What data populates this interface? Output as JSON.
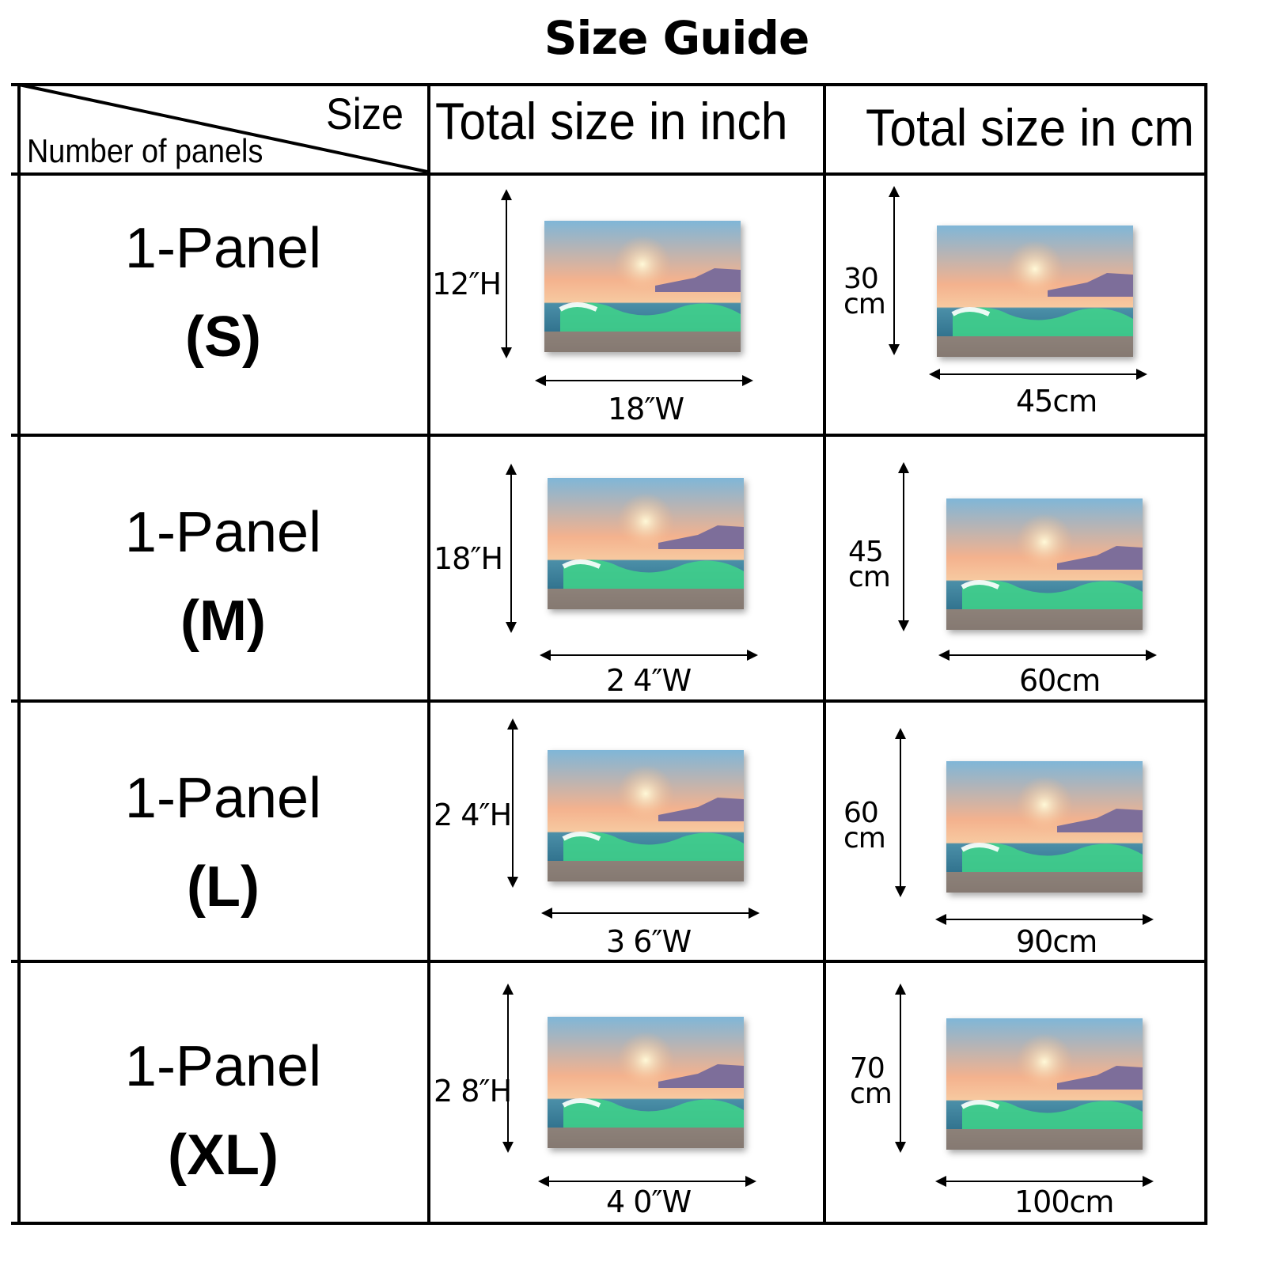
{
  "title": "Size Guide",
  "header": {
    "size_label": "Size",
    "panels_label": "Number of panels",
    "inch_column": "Total size in inch",
    "cm_column": "Total size in cm"
  },
  "rows": [
    {
      "panels": "1-Panel",
      "size": "(S)",
      "inch_h": "12″H",
      "inch_w": "18″W",
      "cm_h_num": "30",
      "cm_h_unit": "cm",
      "cm_w": "45cm"
    },
    {
      "panels": "1-Panel",
      "size": "(M)",
      "inch_h": "18″H",
      "inch_w": "2 4″W",
      "cm_h_num": "45",
      "cm_h_unit": "cm",
      "cm_w": "60cm"
    },
    {
      "panels": "1-Panel",
      "size": "(L)",
      "inch_h": "2 4″H",
      "inch_w": "3 6″W",
      "cm_h_num": "60",
      "cm_h_unit": "cm",
      "cm_w": "90cm"
    },
    {
      "panels": "1-Panel",
      "size": "(XL)",
      "inch_h": "2 8″H",
      "inch_w": "4 0″W",
      "cm_h_num": "70",
      "cm_h_unit": "cm",
      "cm_w": "100cm"
    }
  ],
  "colors": {
    "line": "#000000",
    "sky_top": "#7fb6d8",
    "sky_warm": "#f6b98a",
    "sun": "#fff4c6",
    "sea": "#2d7f97",
    "wave": "#3fd58a",
    "mountain": "#7d6e9a"
  },
  "icons": [
    "seascape-painting-thumbnail",
    "vertical-double-arrow",
    "horizontal-double-arrow"
  ]
}
